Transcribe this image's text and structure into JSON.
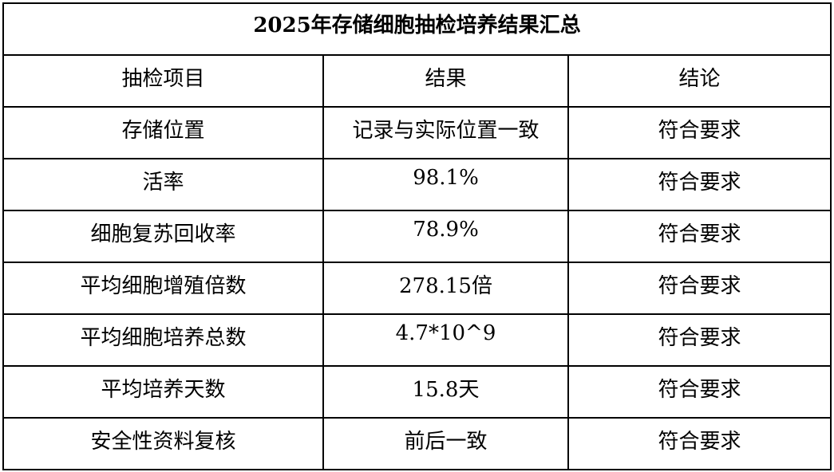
{
  "title": "2025年存储细胞抽检培养结果汇总",
  "headers": [
    "抽检项目",
    "结果",
    "结论"
  ],
  "rows": [
    [
      "存储位置",
      "记录与实际位置一致",
      "符合要求"
    ],
    [
      "活率",
      "98.1%",
      "符合要求"
    ],
    [
      "细胞复苏回收率",
      "78.9%",
      "符合要求"
    ],
    [
      "平均细胞增殖倍数",
      "278.15倍",
      "符合要求"
    ],
    [
      "平均细胞培养总数",
      "4.7*10^9",
      "符合要求"
    ],
    [
      "平均培养天数",
      "15.8天",
      "符合要求"
    ],
    [
      "安全性资料复核",
      "前后一致",
      "符合要求"
    ]
  ]
}
